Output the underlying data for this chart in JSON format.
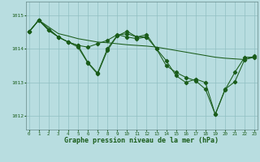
{
  "background_color": "#b8dde0",
  "grid_color": "#90bfc2",
  "line_color": "#1a5c1a",
  "xlabel": "Graphe pression niveau de la mer (hPa)",
  "xlim": [
    -0.3,
    23.3
  ],
  "ylim": [
    1011.6,
    1015.4
  ],
  "yticks": [
    1012,
    1013,
    1014,
    1015
  ],
  "xticks": [
    0,
    1,
    2,
    3,
    4,
    5,
    6,
    7,
    8,
    9,
    10,
    11,
    12,
    13,
    14,
    15,
    16,
    17,
    18,
    19,
    20,
    21,
    22,
    23
  ],
  "series": [
    {
      "x": [
        0,
        1,
        2,
        3,
        4,
        5,
        6,
        7,
        8,
        9,
        10,
        11,
        12,
        13,
        14,
        15,
        16,
        17,
        18,
        19,
        20,
        21,
        22,
        23
      ],
      "y": [
        1014.5,
        1014.85,
        1014.65,
        1014.45,
        1014.38,
        1014.3,
        1014.25,
        1014.2,
        1014.18,
        1014.15,
        1014.12,
        1014.1,
        1014.08,
        1014.05,
        1014.0,
        1013.95,
        1013.9,
        1013.85,
        1013.8,
        1013.75,
        1013.72,
        1013.7,
        1013.68,
        1013.75
      ],
      "marker": false
    },
    {
      "x": [
        0,
        1,
        2,
        3,
        4,
        5,
        6,
        7,
        8,
        9,
        10,
        11,
        12
      ],
      "y": [
        1014.5,
        1014.85,
        1014.55,
        1014.35,
        1014.2,
        1014.1,
        1013.6,
        1013.28,
        1014.0,
        1014.4,
        1014.45,
        1014.35,
        1014.35
      ],
      "marker": true
    },
    {
      "x": [
        0,
        1,
        2,
        3,
        4,
        5,
        6,
        7,
        8,
        9,
        10,
        11,
        12,
        13,
        14,
        15,
        16,
        17,
        18,
        19,
        20,
        21,
        22,
        23
      ],
      "y": [
        1014.5,
        1014.85,
        1014.55,
        1014.35,
        1014.2,
        1014.1,
        1014.05,
        1014.15,
        1014.25,
        1014.42,
        1014.35,
        1014.3,
        1014.35,
        1014.0,
        1013.5,
        1013.3,
        1013.15,
        1013.05,
        1012.8,
        1012.05,
        1012.8,
        1013.02,
        1013.68,
        1013.78
      ],
      "marker": true
    },
    {
      "x": [
        0,
        1,
        3,
        4,
        5,
        6,
        7,
        8,
        9,
        10,
        11,
        12,
        13,
        14,
        15,
        16,
        17,
        18,
        19,
        20,
        21,
        22,
        23
      ],
      "y": [
        1014.5,
        1014.85,
        1014.35,
        1014.2,
        1014.05,
        1013.58,
        1013.25,
        1013.95,
        1014.38,
        1014.52,
        1014.35,
        1014.42,
        1014.0,
        1013.65,
        1013.2,
        1013.0,
        1013.1,
        1013.0,
        1012.05,
        1012.78,
        1013.3,
        1013.75,
        1013.75
      ],
      "marker": true
    }
  ]
}
